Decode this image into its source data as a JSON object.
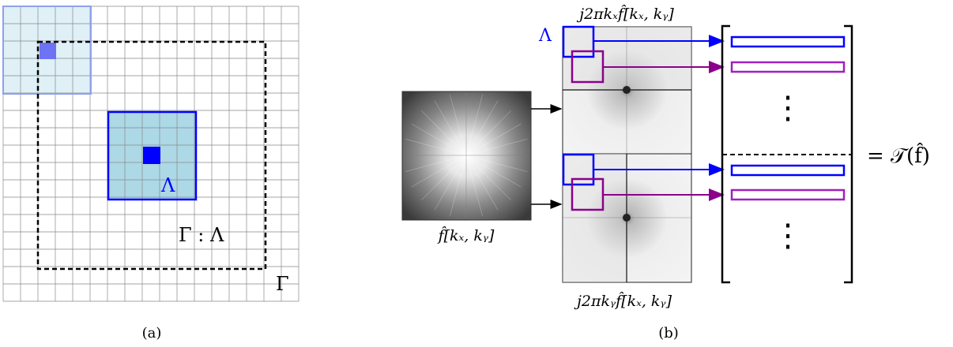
{
  "panel_a": {
    "caption": "(a)",
    "lambda_label": "Λ",
    "gamma_lambda_label": "Γ : Λ",
    "gamma_label": "Γ",
    "colors": {
      "light_fill": "#dff0f6",
      "light_border": "#8ea0ee",
      "small_square": "#6d73f2",
      "main_fill": "#add8e6",
      "main_border": "#0000ff",
      "center_square": "#0000ff",
      "grid_line": "#888888"
    }
  },
  "panel_b": {
    "caption": "(b)",
    "input_label": "f̂[kₓ, kᵧ]",
    "top_label": "j2πkₓf̂[kₓ, kᵧ]",
    "bottom_label": "j2πkᵧf̂[kₓ, kᵧ]",
    "lambda_label": "Λ",
    "result_label": "= 𝒯(f̂)",
    "vertical_ellipsis": "⋮",
    "colors": {
      "blue": "#0000ff",
      "purple": "#8b008b",
      "purple_bar": "#a020c0"
    }
  }
}
